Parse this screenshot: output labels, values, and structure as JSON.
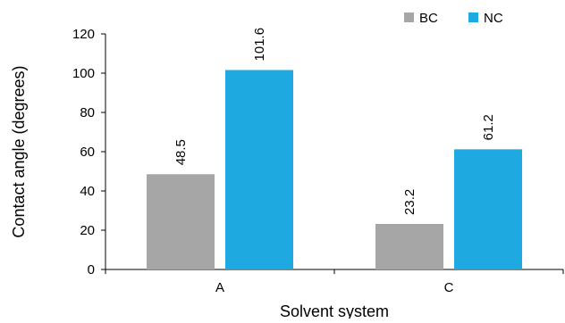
{
  "chart_data": {
    "type": "bar",
    "title": "",
    "xlabel": "Solvent system",
    "ylabel": "Contact angle (degrees)",
    "categories": [
      "A",
      "C"
    ],
    "series": [
      {
        "name": "BC",
        "color": "#A6A6A6",
        "values": [
          48.5,
          23.2
        ]
      },
      {
        "name": "NC",
        "color": "#1FA9E1",
        "values": [
          101.6,
          61.2
        ]
      }
    ],
    "ylim": [
      0,
      120
    ],
    "yticks": [
      0,
      20,
      40,
      60,
      80,
      100,
      120
    ],
    "grid": false,
    "legend_position": "top-right",
    "data_labels": true
  }
}
